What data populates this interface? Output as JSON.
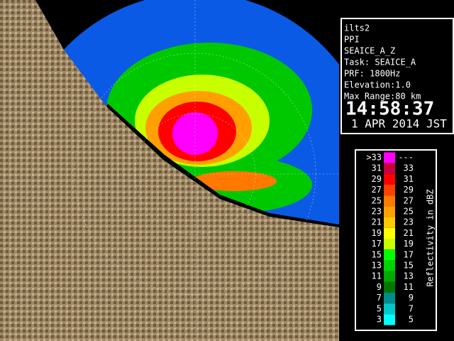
{
  "info": {
    "lines": [
      "ilts2",
      "PPI",
      "SEAICE_A_Z",
      "Task: SEAICE_A",
      "PRF: 1800Hz",
      "Elevation:1.0",
      "Max Range:80 km"
    ],
    "time": "14:58:37",
    "date": "1 APR 2014 JST"
  },
  "legend": {
    "title": "Reflectivity in dBZ",
    "rows": [
      {
        "low": ">33",
        "high": "---",
        "color": "#ff00ff"
      },
      {
        "low": "31",
        "high": "33",
        "color": "#c8003c"
      },
      {
        "low": "29",
        "high": "31",
        "color": "#ff0000"
      },
      {
        "low": "27",
        "high": "29",
        "color": "#ff4000"
      },
      {
        "low": "25",
        "high": "27",
        "color": "#ff7800"
      },
      {
        "low": "23",
        "high": "25",
        "color": "#ffa000"
      },
      {
        "low": "21",
        "high": "23",
        "color": "#ffc800"
      },
      {
        "low": "19",
        "high": "21",
        "color": "#ffff00"
      },
      {
        "low": "17",
        "high": "19",
        "color": "#c8ff00"
      },
      {
        "low": "15",
        "high": "17",
        "color": "#00ff00"
      },
      {
        "low": "13",
        "high": "15",
        "color": "#00d200"
      },
      {
        "low": "11",
        "high": "13",
        "color": "#00aa00"
      },
      {
        "low": "9",
        "high": "11",
        "color": "#007800"
      },
      {
        "low": "7",
        "high": "9",
        "color": "#008c8c"
      },
      {
        "low": "5",
        "high": "7",
        "color": "#00c8c8"
      },
      {
        "low": "3",
        "high": "5",
        "color": "#00ffff"
      }
    ]
  }
}
